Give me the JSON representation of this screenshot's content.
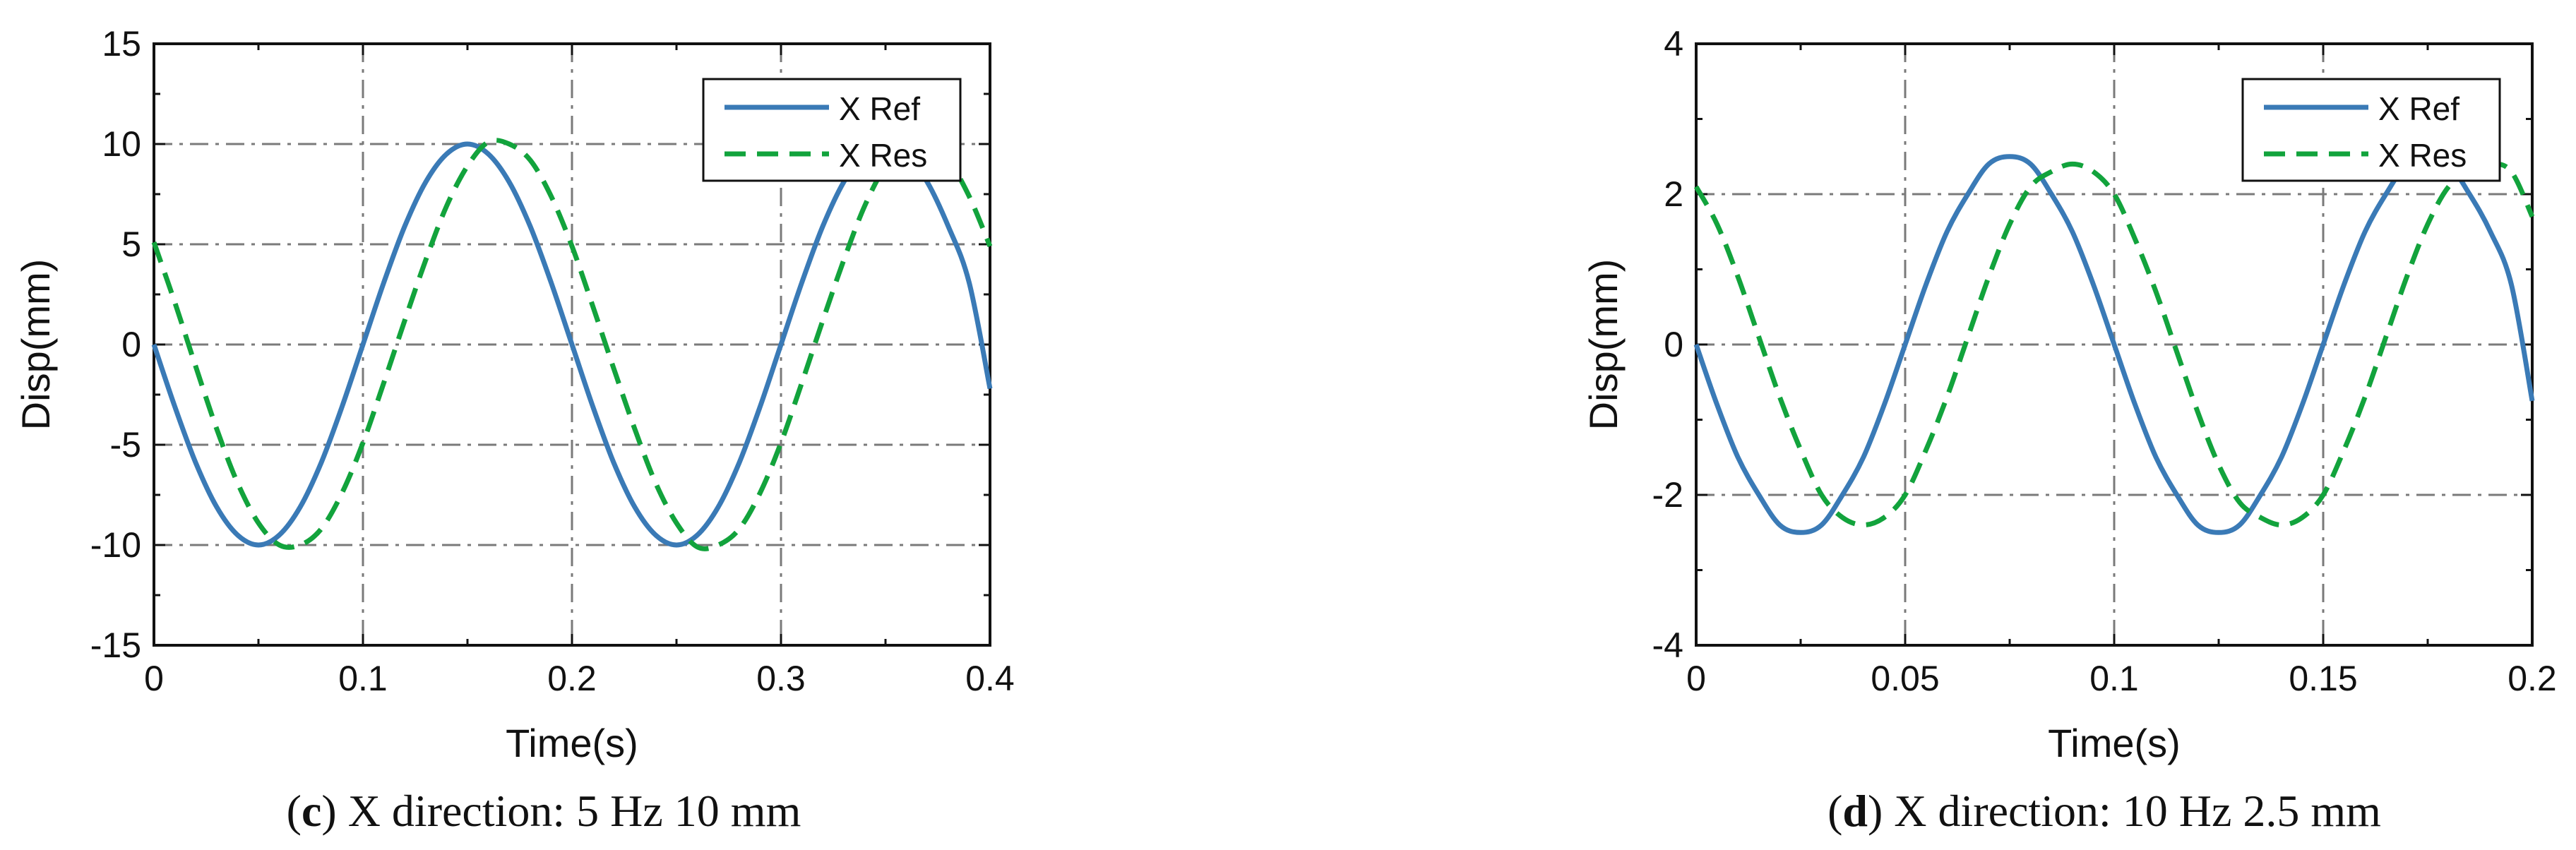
{
  "captions": [
    {
      "letter": "c",
      "text": ") X direction: 5 Hz 10 mm"
    },
    {
      "letter": "d",
      "text": ") X direction: 10 Hz 2.5 mm"
    }
  ],
  "colors": {
    "ref": "#3a7ab6",
    "res": "#12a33c",
    "grid": "#7a7a7a",
    "axis": "#111111"
  },
  "chart_data": [
    {
      "type": "line",
      "xlabel": "Time(s)",
      "ylabel": "Disp(mm)",
      "xlim": [
        0,
        0.4
      ],
      "ylim": [
        -15,
        15
      ],
      "xticks": [
        0,
        0.1,
        0.2,
        0.3,
        0.4
      ],
      "xtick_labels": [
        "0",
        "0.1",
        "0.2",
        "0.3",
        "0.4"
      ],
      "yticks": [
        15,
        10,
        5,
        0,
        -5,
        -10,
        -15
      ],
      "ytick_labels": [
        "15",
        "10",
        "5",
        "0",
        "-5",
        "-10",
        "-15"
      ],
      "grid": true,
      "legend_position": "top-right",
      "series": [
        {
          "name": "X Ref",
          "style": "solid",
          "x": [
            0,
            0.01,
            0.02,
            0.03,
            0.04,
            0.05,
            0.06,
            0.07,
            0.08,
            0.09,
            0.1,
            0.11,
            0.12,
            0.13,
            0.14,
            0.15,
            0.16,
            0.17,
            0.18,
            0.19,
            0.2,
            0.21,
            0.22,
            0.23,
            0.24,
            0.25,
            0.26,
            0.27,
            0.28,
            0.29,
            0.3,
            0.31,
            0.32,
            0.33,
            0.34,
            0.35,
            0.36,
            0.37,
            0.38,
            0.39,
            0.4
          ],
          "y": [
            0,
            -3.1,
            -5.9,
            -8.1,
            -9.5,
            -10,
            -9.5,
            -8.1,
            -5.9,
            -3.1,
            0,
            3.1,
            5.9,
            8.1,
            9.5,
            10,
            9.5,
            8.1,
            5.9,
            3.1,
            0,
            -3.1,
            -5.9,
            -8.1,
            -9.5,
            -10,
            -9.5,
            -8.1,
            -5.9,
            -3.1,
            0,
            3.1,
            5.9,
            8.1,
            9.5,
            10,
            9.5,
            8.1,
            5.9,
            3.1,
            -2.2
          ]
        },
        {
          "name": "X Res",
          "style": "dashed",
          "x": [
            0,
            0.01,
            0.02,
            0.03,
            0.04,
            0.05,
            0.06,
            0.07,
            0.08,
            0.09,
            0.1,
            0.11,
            0.12,
            0.13,
            0.14,
            0.15,
            0.16,
            0.17,
            0.18,
            0.19,
            0.2,
            0.21,
            0.22,
            0.23,
            0.24,
            0.25,
            0.26,
            0.27,
            0.28,
            0.29,
            0.3,
            0.31,
            0.32,
            0.33,
            0.34,
            0.35,
            0.36,
            0.37,
            0.38,
            0.39,
            0.4
          ],
          "y": [
            5.1,
            2.1,
            -1.1,
            -4.2,
            -6.9,
            -8.9,
            -10,
            -10,
            -9.2,
            -7.4,
            -4.9,
            -1.9,
            1.2,
            4.2,
            6.9,
            8.9,
            10.1,
            10,
            9.2,
            7.4,
            4.9,
            1.9,
            -1.2,
            -4.2,
            -6.9,
            -8.9,
            -10.1,
            -10,
            -9.2,
            -7.4,
            -4.9,
            -1.9,
            1.2,
            4.2,
            6.9,
            8.9,
            10,
            10,
            9.2,
            7.4,
            4.9
          ]
        }
      ]
    },
    {
      "type": "line",
      "xlabel": "Time(s)",
      "ylabel": "Disp(mm)",
      "xlim": [
        0,
        0.2
      ],
      "ylim": [
        -4,
        4
      ],
      "xticks": [
        0,
        0.05,
        0.1,
        0.15,
        0.2
      ],
      "xtick_labels": [
        "0",
        "0.05",
        "0.1",
        "0.15",
        "0.2"
      ],
      "yticks": [
        4,
        2,
        0,
        -2,
        -4
      ],
      "ytick_labels": [
        "4",
        "2",
        "0",
        "-2",
        "-4"
      ],
      "grid": true,
      "legend_position": "top-right",
      "series": [
        {
          "name": "X Ref",
          "style": "solid",
          "x": [
            0,
            0.005,
            0.01,
            0.015,
            0.02,
            0.025,
            0.03,
            0.035,
            0.04,
            0.045,
            0.05,
            0.055,
            0.06,
            0.065,
            0.07,
            0.075,
            0.08,
            0.085,
            0.09,
            0.095,
            0.1,
            0.105,
            0.11,
            0.115,
            0.12,
            0.125,
            0.13,
            0.135,
            0.14,
            0.145,
            0.15,
            0.155,
            0.16,
            0.165,
            0.17,
            0.175,
            0.18,
            0.185,
            0.19,
            0.195,
            0.2
          ],
          "y": [
            0,
            -0.8,
            -1.5,
            -2.0,
            -2.4,
            -2.5,
            -2.4,
            -2.0,
            -1.5,
            -0.8,
            0,
            0.8,
            1.5,
            2.0,
            2.4,
            2.5,
            2.4,
            2.0,
            1.5,
            0.8,
            0,
            -0.8,
            -1.5,
            -2.0,
            -2.4,
            -2.5,
            -2.4,
            -2.0,
            -1.5,
            -0.8,
            0,
            0.8,
            1.5,
            2.0,
            2.4,
            2.5,
            2.4,
            2.0,
            1.5,
            0.8,
            -0.75
          ]
        },
        {
          "name": "X Res",
          "style": "dashed",
          "x": [
            0,
            0.005,
            0.01,
            0.015,
            0.02,
            0.025,
            0.03,
            0.035,
            0.04,
            0.045,
            0.05,
            0.055,
            0.06,
            0.065,
            0.07,
            0.075,
            0.08,
            0.085,
            0.09,
            0.095,
            0.1,
            0.105,
            0.11,
            0.115,
            0.12,
            0.125,
            0.13,
            0.135,
            0.14,
            0.145,
            0.15,
            0.155,
            0.16,
            0.165,
            0.17,
            0.175,
            0.18,
            0.185,
            0.19,
            0.195,
            0.2
          ],
          "y": [
            2.1,
            1.6,
            0.9,
            0.1,
            -0.7,
            -1.4,
            -2.0,
            -2.3,
            -2.4,
            -2.3,
            -2.0,
            -1.4,
            -0.7,
            0.1,
            0.9,
            1.6,
            2.1,
            2.3,
            2.4,
            2.3,
            2.0,
            1.4,
            0.7,
            -0.1,
            -0.9,
            -1.6,
            -2.1,
            -2.3,
            -2.4,
            -2.3,
            -2.0,
            -1.4,
            -0.7,
            0.1,
            0.9,
            1.6,
            2.1,
            2.3,
            2.4,
            2.3,
            1.7
          ]
        }
      ]
    }
  ]
}
